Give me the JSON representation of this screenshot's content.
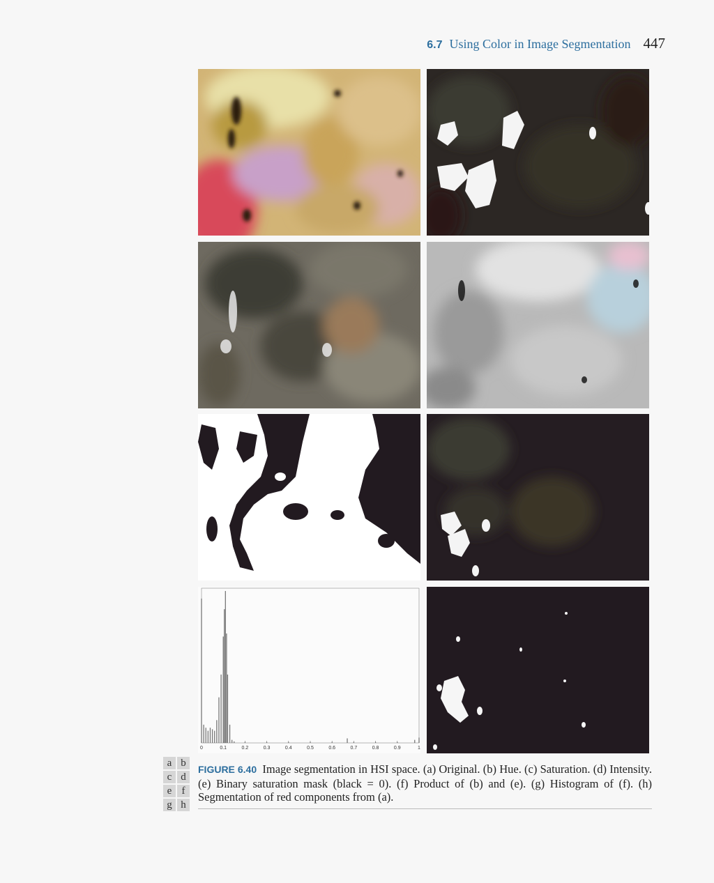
{
  "header": {
    "section_number": "6.7",
    "section_title": "Using Color in Image Segmentation",
    "page_number": "447"
  },
  "panel_letters": [
    "a",
    "b",
    "c",
    "d",
    "e",
    "f",
    "g",
    "h"
  ],
  "caption": {
    "label": "FIGURE 6.40",
    "text": "Image segmentation in HSI space. (a) Original. (b) Hue. (c) Saturation. (d) Intensity. (e) Binary saturation mask (black = 0). (f) Product of (b) and (e). (g) Histogram of (f). (h) Segmentation of red components from (a)."
  },
  "chart_data": {
    "type": "bar",
    "title": "",
    "xlabel": "",
    "ylabel": "",
    "xlim": [
      0,
      1
    ],
    "x_ticks": [
      "0",
      "0.1",
      "0.2",
      "0.3",
      "0.4",
      "0.5",
      "0.6",
      "0.7",
      "0.8",
      "0.9",
      "1"
    ],
    "x": [
      0.0,
      0.01,
      0.02,
      0.03,
      0.04,
      0.05,
      0.06,
      0.07,
      0.08,
      0.09,
      0.1,
      0.105,
      0.11,
      0.115,
      0.12,
      0.13,
      0.14,
      0.15,
      0.2,
      0.3,
      0.4,
      0.5,
      0.6,
      0.67,
      0.7,
      0.8,
      0.9,
      0.98,
      1.0
    ],
    "values": [
      0.95,
      0.12,
      0.1,
      0.08,
      0.1,
      0.09,
      0.08,
      0.15,
      0.3,
      0.45,
      0.7,
      0.88,
      1.0,
      0.72,
      0.45,
      0.12,
      0.02,
      0.01,
      0.005,
      0.005,
      0.005,
      0.005,
      0.005,
      0.03,
      0.005,
      0.005,
      0.005,
      0.02,
      0.035
    ]
  }
}
